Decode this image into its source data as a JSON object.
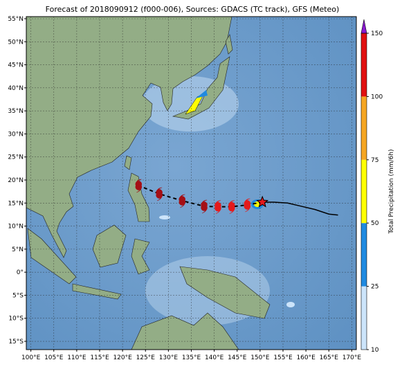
{
  "map": {
    "title": "Forecast of 2018090912 (f000-006), Sources: GDACS (TC track), GFS (Meteo)",
    "lon_extent": [
      99,
      171
    ],
    "lat_extent": [
      -16.8,
      55.45
    ],
    "lon_ticks": [
      {
        "value": 100,
        "label": "100°E"
      },
      {
        "value": 105,
        "label": "105°E"
      },
      {
        "value": 110,
        "label": "110°E"
      },
      {
        "value": 115,
        "label": "115°E"
      },
      {
        "value": 120,
        "label": "120°E"
      },
      {
        "value": 125,
        "label": "125°E"
      },
      {
        "value": 130,
        "label": "130°E"
      },
      {
        "value": 135,
        "label": "135°E"
      },
      {
        "value": 140,
        "label": "140°E"
      },
      {
        "value": 145,
        "label": "145°E"
      },
      {
        "value": 150,
        "label": "150°E"
      },
      {
        "value": 155,
        "label": "155°E"
      },
      {
        "value": 160,
        "label": "160°E"
      },
      {
        "value": 165,
        "label": "165°E"
      },
      {
        "value": 170,
        "label": "170°E"
      }
    ],
    "lat_ticks": [
      {
        "value": 55,
        "label": "55°N"
      },
      {
        "value": 50,
        "label": "50°N"
      },
      {
        "value": 45,
        "label": "45°N"
      },
      {
        "value": 40,
        "label": "40°N"
      },
      {
        "value": 35,
        "label": "35°N"
      },
      {
        "value": 30,
        "label": "30°N"
      },
      {
        "value": 25,
        "label": "25°N"
      },
      {
        "value": 20,
        "label": "20°N"
      },
      {
        "value": 15,
        "label": "15°N"
      },
      {
        "value": 10,
        "label": "10°N"
      },
      {
        "value": 5,
        "label": "5°N"
      },
      {
        "value": 0,
        "label": "0°"
      },
      {
        "value": -5,
        "label": "5°S"
      },
      {
        "value": -10,
        "label": "10°S"
      },
      {
        "value": -15,
        "label": "15°S"
      }
    ],
    "colorbar": {
      "label": "Total Precipitation (mm/6h)",
      "ticks": [
        10,
        25,
        50,
        75,
        100,
        150
      ],
      "colors": [
        "#cce4fa",
        "#1f8ae0",
        "#ffff00",
        "#f5a623",
        "#e01010"
      ],
      "extend_color": "#8a1ad0"
    },
    "past_track": {
      "lon": [
        150.5,
        153,
        156,
        159,
        162,
        165,
        167
      ],
      "lat": [
        15.2,
        15.2,
        15,
        14.3,
        13.6,
        12.6,
        12.4
      ]
    },
    "forecast_track": {
      "lon": [
        150.5,
        147.2,
        143.8,
        140.8,
        137.8,
        133,
        128,
        123.5
      ],
      "lat": [
        15.2,
        14.6,
        14.2,
        14.2,
        14.3,
        15.5,
        17,
        18.8
      ]
    }
  }
}
